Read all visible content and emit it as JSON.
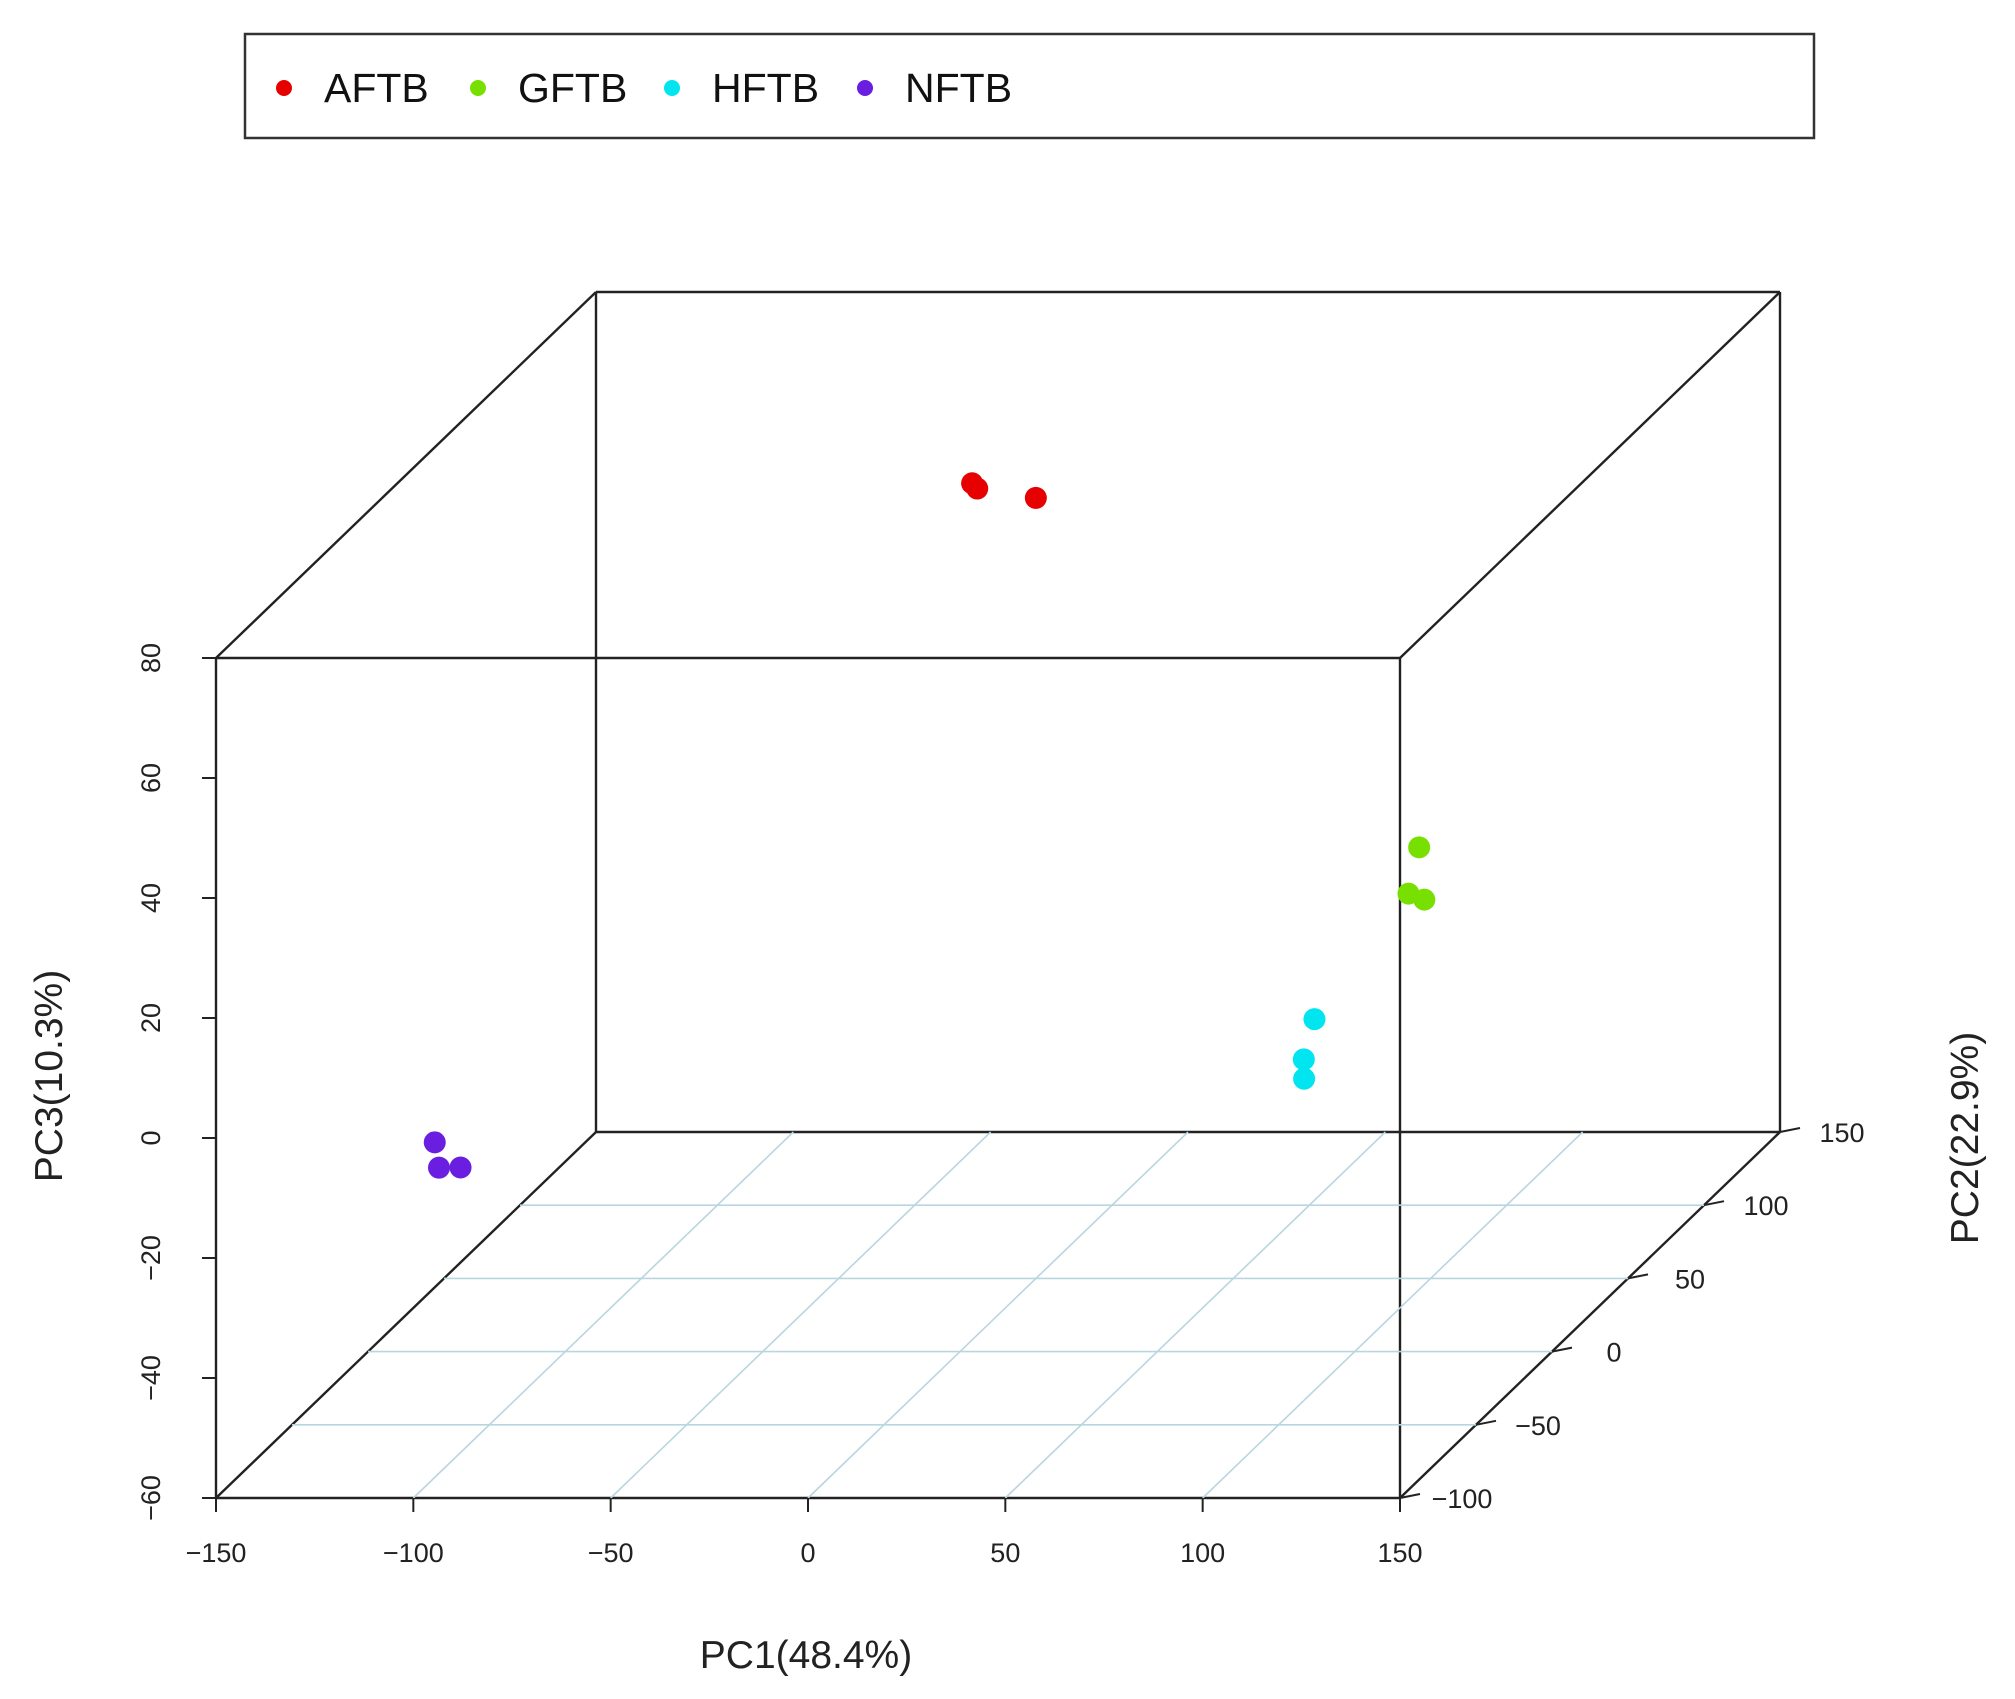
{
  "chart_data": {
    "type": "scatter",
    "projection": "3d",
    "xlabel": "PC1(48.4%)",
    "ylabel": "PC2(22.9%)",
    "zlabel": "PC3(10.3%)",
    "xlim": [
      -150,
      150
    ],
    "ylim": [
      -100,
      150
    ],
    "zlim": [
      -60,
      80
    ],
    "xticks": [
      "−150",
      "−100",
      "−50",
      "0",
      "50",
      "100",
      "150"
    ],
    "yticks": [
      "−100",
      "−50",
      "0",
      "50",
      "100",
      "150"
    ],
    "zticks": [
      "−60",
      "−40",
      "−20",
      "0",
      "20",
      "40",
      "60",
      "80"
    ],
    "legend_position": "top",
    "grid": "floor",
    "series": [
      {
        "name": "AFTB",
        "color": "#e60000",
        "points": [
          {
            "x": -47,
            "y": 130,
            "z": 53
          },
          {
            "x": -27,
            "y": 120,
            "z": 53
          },
          {
            "x": -38,
            "y": 110,
            "z": 57
          }
        ]
      },
      {
        "name": "GFTB",
        "color": "#77e000",
        "points": [
          {
            "x": 151,
            "y": -90,
            "z": 46
          },
          {
            "x": 151,
            "y": -97,
            "z": 40
          },
          {
            "x": 155,
            "y": -97,
            "z": 39
          }
        ]
      },
      {
        "name": "HFTB",
        "color": "#00e5f0",
        "points": [
          {
            "x": 116,
            "y": -68,
            "z": 12
          },
          {
            "x": 116,
            "y": -75,
            "z": 7
          },
          {
            "x": 118,
            "y": -80,
            "z": 5
          }
        ]
      },
      {
        "name": "NFTB",
        "color": "#6a1fe0",
        "points": [
          {
            "x": -125,
            "y": -21,
            "z": -20
          },
          {
            "x": -122,
            "y": -26,
            "z": -23
          },
          {
            "x": -115,
            "y": -30,
            "z": -22
          }
        ]
      }
    ]
  }
}
